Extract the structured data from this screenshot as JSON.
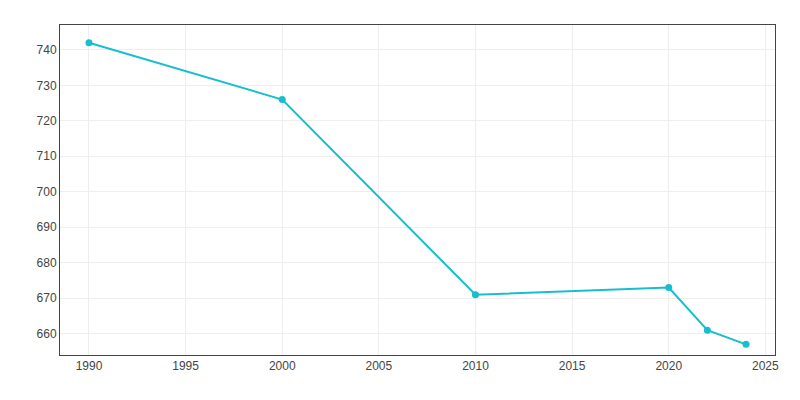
{
  "chart_data": {
    "type": "line",
    "x": [
      1990,
      2000,
      2010,
      2020,
      2022,
      2024
    ],
    "values": [
      742,
      726,
      671,
      673,
      661,
      657
    ],
    "color": "#17becf",
    "marker": "circle",
    "xlim": [
      1988.5,
      2025.5
    ],
    "ylim": [
      654,
      747
    ],
    "xticks": [
      1990,
      1995,
      2000,
      2005,
      2010,
      2015,
      2020,
      2025
    ],
    "yticks": [
      660,
      670,
      680,
      690,
      700,
      710,
      720,
      730,
      740
    ],
    "grid": true
  }
}
